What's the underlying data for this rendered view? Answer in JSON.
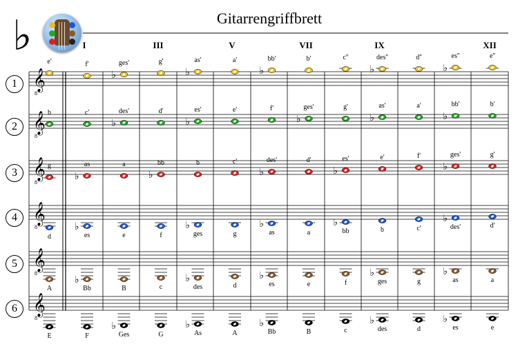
{
  "title": "Gitarrengriffbrett",
  "key_signature": "♭",
  "logo_icon": "guitar-headstock-icon",
  "positions": [
    "I",
    "III",
    "V",
    "VII",
    "IX",
    "XII"
  ],
  "strings": [
    {
      "number": "1",
      "color": "#e8c020",
      "above": true,
      "notes": [
        "e'",
        "f'",
        "ges'",
        "g'",
        "as'",
        "a'",
        "bb'",
        "b'",
        "c''",
        "des''",
        "d''",
        "es''",
        "e''"
      ]
    },
    {
      "number": "2",
      "color": "#22a822",
      "above": true,
      "notes": [
        "b",
        "c'",
        "des'",
        "d'",
        "es'",
        "e'",
        "f'",
        "ges'",
        "g'",
        "as'",
        "a'",
        "bb'",
        "b'"
      ]
    },
    {
      "number": "3",
      "color": "#e02020",
      "above": true,
      "notes": [
        "g",
        "as",
        "a",
        "bb",
        "b",
        "c'",
        "des'",
        "d'",
        "es'",
        "e'",
        "f'",
        "ges'",
        "g'"
      ]
    },
    {
      "number": "4",
      "color": "#1f56d8",
      "above": false,
      "notes": [
        "d",
        "es",
        "e",
        "f",
        "ges",
        "g",
        "as",
        "a",
        "bb",
        "b",
        "c'",
        "des'",
        "d'"
      ]
    },
    {
      "number": "5",
      "color": "#8b5a2b",
      "above": false,
      "notes": [
        "A",
        "Bb",
        "B",
        "c",
        "des",
        "d",
        "es",
        "e",
        "f",
        "ges",
        "g",
        "as",
        "a"
      ]
    },
    {
      "number": "6",
      "color": "#000000",
      "above": false,
      "notes": [
        "E",
        "F",
        "Ges",
        "G",
        "As",
        "A",
        "Bb",
        "B",
        "c",
        "des",
        "d",
        "es",
        "e"
      ]
    }
  ]
}
